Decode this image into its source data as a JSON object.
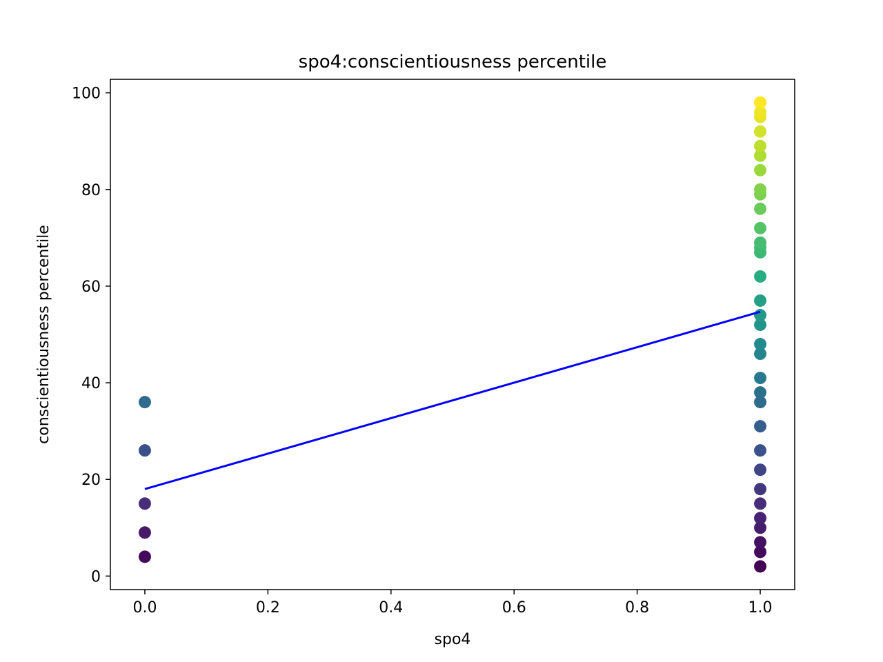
{
  "chart_data": {
    "type": "scatter",
    "title": "spo4:conscientiousness percentile",
    "xlabel": "spo4",
    "ylabel": "conscientiousness percentile",
    "xlim": [
      -0.056,
      1.056
    ],
    "ylim": [
      -2.8,
      102.8
    ],
    "xticks": [
      0.0,
      0.2,
      0.4,
      0.6,
      0.8,
      1.0
    ],
    "xtick_labels": [
      "0.0",
      "0.2",
      "0.4",
      "0.6",
      "0.8",
      "1.0"
    ],
    "yticks": [
      0,
      20,
      40,
      60,
      80,
      100
    ],
    "ytick_labels": [
      "0",
      "20",
      "40",
      "60",
      "80",
      "100"
    ],
    "colormap": "viridis",
    "points": [
      {
        "x": 0,
        "y": 4
      },
      {
        "x": 0,
        "y": 9
      },
      {
        "x": 0,
        "y": 15
      },
      {
        "x": 0,
        "y": 26
      },
      {
        "x": 0,
        "y": 36
      },
      {
        "x": 1,
        "y": 2
      },
      {
        "x": 1,
        "y": 5
      },
      {
        "x": 1,
        "y": 7
      },
      {
        "x": 1,
        "y": 10
      },
      {
        "x": 1,
        "y": 12
      },
      {
        "x": 1,
        "y": 15
      },
      {
        "x": 1,
        "y": 18
      },
      {
        "x": 1,
        "y": 22
      },
      {
        "x": 1,
        "y": 26
      },
      {
        "x": 1,
        "y": 31
      },
      {
        "x": 1,
        "y": 36
      },
      {
        "x": 1,
        "y": 38
      },
      {
        "x": 1,
        "y": 41
      },
      {
        "x": 1,
        "y": 46
      },
      {
        "x": 1,
        "y": 48
      },
      {
        "x": 1,
        "y": 52
      },
      {
        "x": 1,
        "y": 54
      },
      {
        "x": 1,
        "y": 57
      },
      {
        "x": 1,
        "y": 62
      },
      {
        "x": 1,
        "y": 67
      },
      {
        "x": 1,
        "y": 68
      },
      {
        "x": 1,
        "y": 69
      },
      {
        "x": 1,
        "y": 72
      },
      {
        "x": 1,
        "y": 76
      },
      {
        "x": 1,
        "y": 79
      },
      {
        "x": 1,
        "y": 80
      },
      {
        "x": 1,
        "y": 84
      },
      {
        "x": 1,
        "y": 87
      },
      {
        "x": 1,
        "y": 89
      },
      {
        "x": 1,
        "y": 92
      },
      {
        "x": 1,
        "y": 95
      },
      {
        "x": 1,
        "y": 96
      },
      {
        "x": 1,
        "y": 98
      }
    ],
    "regression_line": {
      "x": [
        0,
        1
      ],
      "y": [
        18.0,
        54.7
      ],
      "color": "#0000ff"
    },
    "grid": false,
    "legend": "none"
  }
}
